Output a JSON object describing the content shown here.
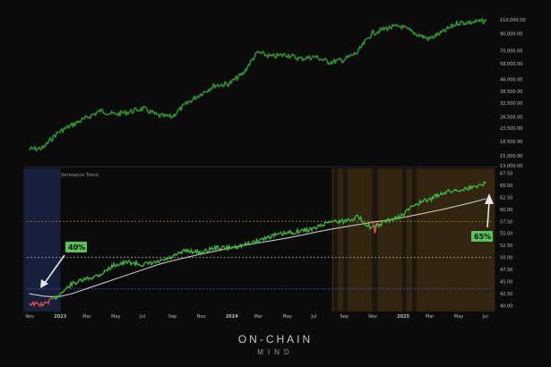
{
  "upper_chart_ticks": [
    "110,000.00",
    "90,000.00",
    "70,000.00",
    "58,000.00",
    "46,000.00",
    "38,500.00",
    "32,500.00",
    "26,500.00",
    "22,500.00",
    "18,500.00",
    "15,000.00",
    "13,000.00"
  ],
  "lower_chart_title": "OCM Bitcoin Dominance Trend",
  "lower_chart_ticks": [
    "67.50",
    "65.00",
    "62.50",
    "60.00",
    "57.50",
    "55.00",
    "52.50",
    "50.00",
    "47.50",
    "45.00",
    "42.50",
    "40.00"
  ],
  "x_ticks": [
    "Nov",
    "2023",
    "Mar",
    "May",
    "Jul",
    "Sep",
    "Nov",
    "2024",
    "Mar",
    "May",
    "Jul",
    "Sep",
    "Nov",
    "2025",
    "Mar",
    "May",
    "Jul"
  ],
  "callout_start": "40%",
  "callout_end": "65%",
  "brand": {
    "line1": "ON-CHAIN",
    "line2": "MIND"
  },
  "colors": {
    "background": "#0b0b0b",
    "price_line": "#2f8f2f",
    "dominance_line": "#3dbb3d",
    "trend_line": "#d9d9d9",
    "callout": "#59c459",
    "blue_zone": "#16203a",
    "amber_zone": "#3a2a12",
    "red_dip": "#e04b4b"
  },
  "chart_data": [
    {
      "type": "line",
      "x": [
        "2022-11",
        "2022-12",
        "2023-01",
        "2023-02",
        "2023-03",
        "2023-04",
        "2023-05",
        "2023-06",
        "2023-07",
        "2023-08",
        "2023-09",
        "2023-10",
        "2023-11",
        "2023-12",
        "2024-01",
        "2024-02",
        "2024-03",
        "2024-04",
        "2024-05",
        "2024-06",
        "2024-07",
        "2024-08",
        "2024-09",
        "2024-10",
        "2024-11",
        "2024-12",
        "2025-01",
        "2025-02",
        "2025-03",
        "2025-04",
        "2025-05",
        "2025-06",
        "2025-07"
      ],
      "series": [
        {
          "values": [
            16500,
            16800,
            21000,
            23500,
            26000,
            29000,
            27500,
            28500,
            30000,
            27000,
            26500,
            32000,
            37000,
            42000,
            43000,
            50000,
            68000,
            64000,
            66000,
            62000,
            64000,
            59000,
            61000,
            68000,
            90000,
            97000,
            100000,
            90000,
            83000,
            92000,
            105000,
            106000,
            108000
          ]
        }
      ],
      "ylim": [
        13000,
        110000
      ]
    },
    {
      "type": "line",
      "x": [
        "2022-11",
        "2022-12",
        "2023-01",
        "2023-02",
        "2023-03",
        "2023-04",
        "2023-05",
        "2023-06",
        "2023-07",
        "2023-08",
        "2023-09",
        "2023-10",
        "2023-11",
        "2023-12",
        "2024-01",
        "2024-02",
        "2024-03",
        "2024-04",
        "2024-05",
        "2024-06",
        "2024-07",
        "2024-08",
        "2024-09",
        "2024-10",
        "2024-11",
        "2024-12",
        "2025-01",
        "2025-02",
        "2025-03",
        "2025-04",
        "2025-05",
        "2025-06",
        "2025-07"
      ],
      "series": [
        {
          "values": [
            40.5,
            40.2,
            42.0,
            44.5,
            45.5,
            46.5,
            48.5,
            49.0,
            48.5,
            49.0,
            50.0,
            51.5,
            51.0,
            52.0,
            52.0,
            52.5,
            53.5,
            54.5,
            55.0,
            55.5,
            56.0,
            57.5,
            57.5,
            58.5,
            56.0,
            57.5,
            58.5,
            61.0,
            62.0,
            63.5,
            64.0,
            64.5,
            65.5
          ]
        },
        {
          "values": [
            42.5,
            42.0,
            41.8,
            42.5,
            43.5,
            44.5,
            45.5,
            46.5,
            47.5,
            48.5,
            49.3,
            50.0,
            50.7,
            51.3,
            51.9,
            52.5,
            53.0,
            53.5,
            54.0,
            54.6,
            55.2,
            55.8,
            56.3,
            56.8,
            57.3,
            57.7,
            58.2,
            58.8,
            59.4,
            60.0,
            60.7,
            61.4,
            62.2
          ]
        }
      ],
      "ylim": [
        40,
        67.5
      ],
      "annotations": [
        "40%",
        "65%"
      ]
    }
  ]
}
